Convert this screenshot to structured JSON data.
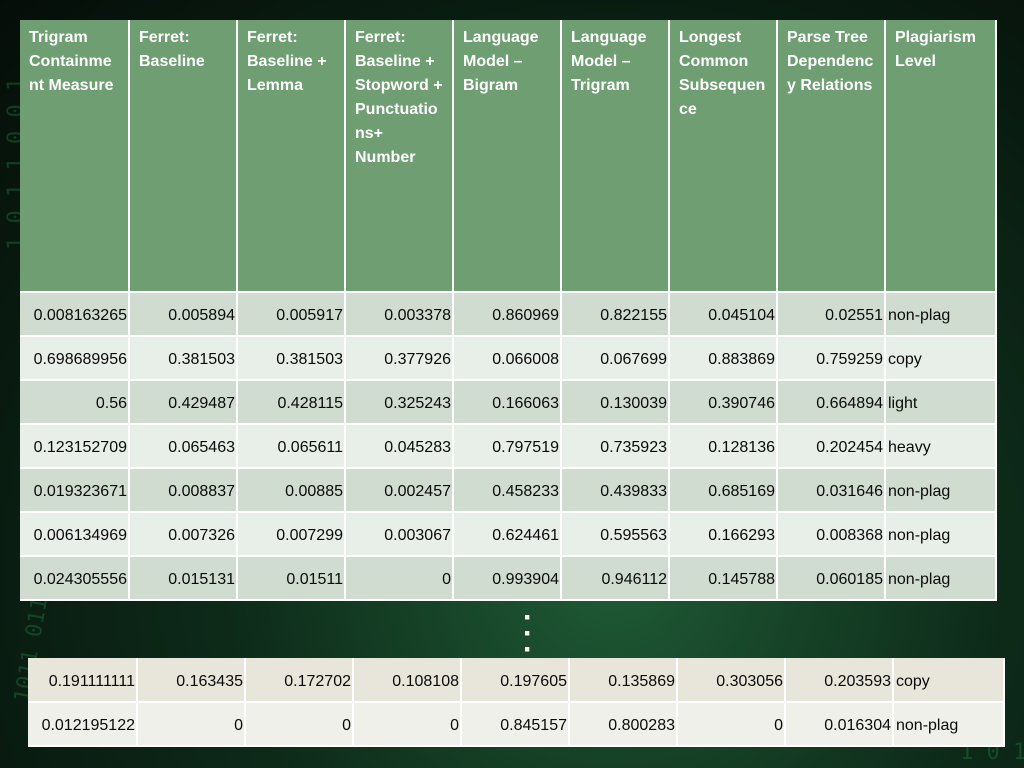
{
  "table": {
    "headers": [
      "Trigram Containment Measure",
      "Ferret: Baseline",
      "Ferret: Baseline + Lemma",
      "Ferret: Baseline + Stopword + Punctuations+ Number",
      "Language Model – Bigram",
      "Language Model – Trigram",
      "Longest Common Subsequence",
      "Parse Tree Dependency Relations",
      "Plagiarism Level"
    ],
    "rows": [
      [
        "0.008163265",
        "0.005894",
        "0.005917",
        "0.003378",
        "0.860969",
        "0.822155",
        "0.045104",
        "0.02551",
        "non-plag"
      ],
      [
        "0.698689956",
        "0.381503",
        "0.381503",
        "0.377926",
        "0.066008",
        "0.067699",
        "0.883869",
        "0.759259",
        "copy"
      ],
      [
        "0.56",
        "0.429487",
        "0.428115",
        "0.325243",
        "0.166063",
        "0.130039",
        "0.390746",
        "0.664894",
        "light"
      ],
      [
        "0.123152709",
        "0.065463",
        "0.065611",
        "0.045283",
        "0.797519",
        "0.735923",
        "0.128136",
        "0.202454",
        "heavy"
      ],
      [
        "0.019323671",
        "0.008837",
        "0.00885",
        "0.002457",
        "0.458233",
        "0.439833",
        "0.685169",
        "0.031646",
        "non-plag"
      ],
      [
        "0.006134969",
        "0.007326",
        "0.007299",
        "0.003067",
        "0.624461",
        "0.595563",
        "0.166293",
        "0.008368",
        "non-plag"
      ],
      [
        "0.024305556",
        "0.015131",
        "0.01511",
        "0",
        "0.993904",
        "0.946112",
        "0.145788",
        "0.060185",
        "non-plag"
      ]
    ],
    "tail_rows": [
      [
        "0.191111111",
        "0.163435",
        "0.172702",
        "0.108108",
        "0.197605",
        "0.135869",
        "0.303056",
        "0.203593",
        "copy"
      ],
      [
        "0.012195122",
        "0",
        "0",
        "0",
        "0.845157",
        "0.800283",
        "0",
        "0.016304",
        "non-plag"
      ]
    ]
  },
  "colors": {
    "header_bg": "#6f9e73",
    "row_dark": "#cfdccf",
    "row_light": "#e8eee8",
    "background": "#0d2a19"
  }
}
